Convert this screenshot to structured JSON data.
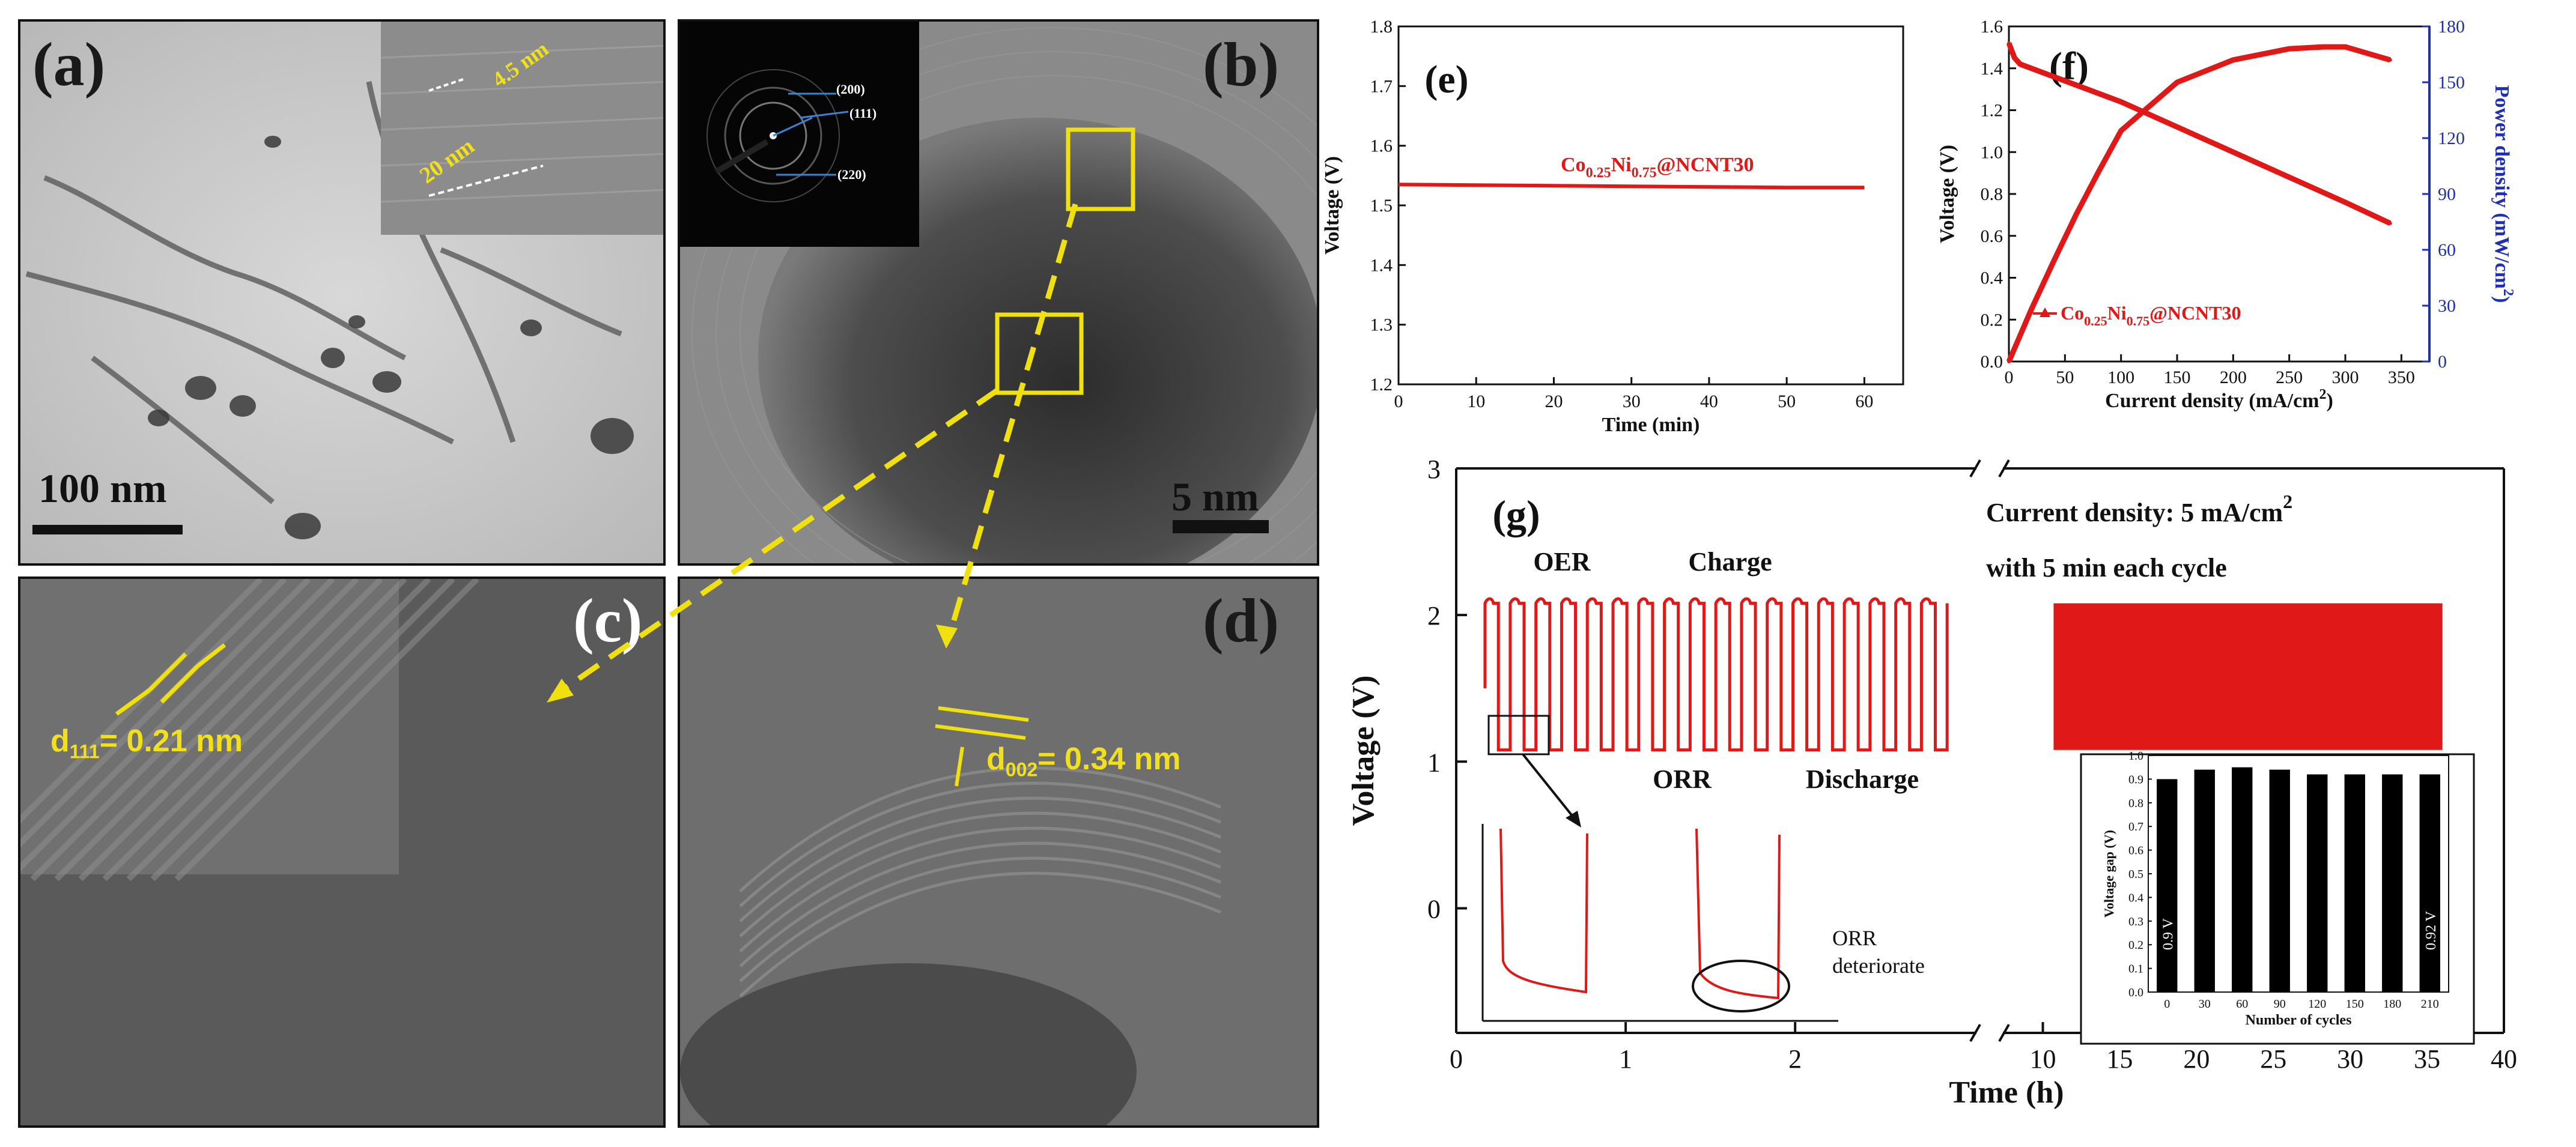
{
  "micrographs": {
    "a": {
      "label": "(a)",
      "scale_bar": "100 nm",
      "inset_dim1": "4.5 nm",
      "inset_dim2": "20 nm"
    },
    "b": {
      "label": "(b)",
      "scale_bar": "5 nm",
      "saed": [
        "(200)",
        "(111)",
        "(220)"
      ]
    },
    "c": {
      "label": "(c)",
      "d_spacing": "d",
      "d_sub": "111",
      "d_value": "= 0.21 nm"
    },
    "d": {
      "label": "(d)",
      "d_spacing": "d",
      "d_sub": "002",
      "d_value": "= 0.34 nm"
    }
  },
  "chart_data": [
    {
      "id": "e",
      "type": "line",
      "panel_label": "(e)",
      "xlabel": "Time (min)",
      "ylabel": "Voltage (V)",
      "xlim": [
        0,
        65
      ],
      "ylim": [
        1.2,
        1.8
      ],
      "xticks": [
        "0",
        "10",
        "20",
        "30",
        "40",
        "50",
        "60"
      ],
      "yticks": [
        "1.2",
        "1.3",
        "1.4",
        "1.5",
        "1.6",
        "1.7",
        "1.8"
      ],
      "series": [
        {
          "name_main": "Co",
          "name_sub1": "0.25",
          "name_mid": "Ni",
          "name_sub2": "0.75",
          "name_tail": "@NCNT30",
          "color": "#e01818",
          "x": [
            0,
            10,
            20,
            30,
            40,
            50,
            60
          ],
          "y": [
            1.535,
            1.534,
            1.533,
            1.532,
            1.531,
            1.53,
            1.53
          ]
        }
      ]
    },
    {
      "id": "f",
      "type": "line",
      "panel_label": "(f)",
      "xlabel": "Current density (mA/cm",
      "xlabel_sup": "2",
      "xlabel_tail": ")",
      "ylabel": "Voltage (V)",
      "y2label": "Power density (mW/cm",
      "y2label_sup": "2",
      "y2label_tail": ")",
      "xlim": [
        0,
        375
      ],
      "ylim": [
        0,
        1.6
      ],
      "y2lim": [
        0,
        180
      ],
      "xticks": [
        "0",
        "50",
        "100",
        "150",
        "200",
        "250",
        "300",
        "350"
      ],
      "yticks": [
        "0.0",
        "0.2",
        "0.4",
        "0.6",
        "0.8",
        "1.0",
        "1.2",
        "1.4",
        "1.6"
      ],
      "y2ticks": [
        "0",
        "30",
        "60",
        "90",
        "120",
        "150",
        "180"
      ],
      "legend": {
        "main": "Co",
        "sub1": "0.25",
        "mid": "Ni",
        "sub2": "0.75",
        "tail": "@NCNT30"
      },
      "series": [
        {
          "name": "Voltage",
          "axis": "left",
          "color": "#e01818",
          "x": [
            0,
            5,
            10,
            20,
            40,
            60,
            80,
            100,
            150,
            200,
            250,
            300,
            340
          ],
          "y": [
            1.52,
            1.45,
            1.42,
            1.4,
            1.36,
            1.32,
            1.28,
            1.24,
            1.12,
            1.0,
            0.88,
            0.76,
            0.66
          ]
        },
        {
          "name": "Power density",
          "axis": "right",
          "color": "#e01818",
          "x": [
            0,
            20,
            40,
            60,
            80,
            100,
            150,
            200,
            250,
            280,
            300,
            340
          ],
          "y": [
            0,
            28,
            54,
            79,
            102,
            124,
            150,
            162,
            168,
            169,
            169,
            162
          ]
        }
      ]
    },
    {
      "id": "g",
      "type": "line",
      "panel_label": "(g)",
      "xlabel": "Time (h)",
      "ylabel": "Voltage (V)",
      "xlim_left": [
        0,
        3
      ],
      "xlim_right": [
        10,
        40
      ],
      "ylim": [
        -0.85,
        3
      ],
      "xticks_left": [
        "0",
        "1",
        "2"
      ],
      "xticks_right": [
        "10",
        "15",
        "20",
        "25",
        "30",
        "35",
        "40"
      ],
      "yticks": [
        "0",
        "1",
        "2",
        "3"
      ],
      "annotations": {
        "oer": "OER",
        "charge": "Charge",
        "orr": "ORR",
        "discharge": "Discharge",
        "current": "Current density: 5 mA/cm",
        "current_sup": "2",
        "cycle": "with 5 min each cycle",
        "orr_note1": "ORR",
        "orr_note2": "deteriorate"
      },
      "charge_voltage": 2.08,
      "discharge_voltage": 1.08,
      "cycles_shown": 18,
      "color": "#e01818"
    },
    {
      "id": "g-inset",
      "type": "bar",
      "xlabel": "Number of cycles",
      "ylabel": "Voltage gap (V)",
      "categories": [
        "0",
        "30",
        "60",
        "90",
        "120",
        "150",
        "180",
        "210"
      ],
      "values": [
        0.9,
        0.94,
        0.95,
        0.94,
        0.92,
        0.92,
        0.92,
        0.92
      ],
      "ylim": [
        0,
        1.0
      ],
      "yticks": [
        "0.0",
        "0.1",
        "0.2",
        "0.3",
        "0.4",
        "0.5",
        "0.6",
        "0.7",
        "0.8",
        "0.9",
        "1.0"
      ],
      "bar_labels": {
        "first": "0.9 V",
        "last": "0.92 V"
      },
      "color": "#000000"
    }
  ]
}
